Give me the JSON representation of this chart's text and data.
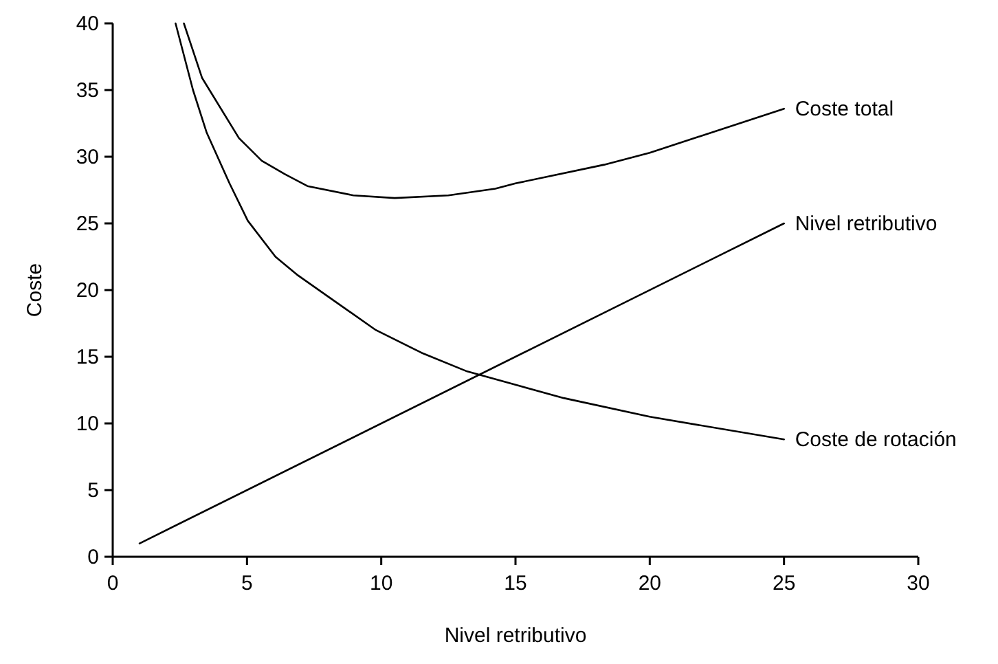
{
  "chart_data": {
    "type": "line",
    "xlabel": "Nivel retributivo",
    "ylabel": "Coste",
    "xlim": [
      0,
      30
    ],
    "ylim": [
      0,
      40
    ],
    "xticks": [
      0,
      5,
      10,
      15,
      20,
      25,
      30
    ],
    "yticks": [
      0,
      5,
      10,
      15,
      20,
      25,
      30,
      35,
      40
    ],
    "grid": false,
    "legend": false,
    "marker": "none",
    "line_style": "solid",
    "series": [
      {
        "name": "Coste total",
        "color": "#000000",
        "x": [
          2.65,
          3.33,
          4.7,
          5.55,
          6.4,
          7.25,
          8.96,
          10.5,
          12.5,
          14.25,
          15,
          18.3,
          20,
          25
        ],
        "values": [
          40,
          35.9,
          31.4,
          29.7,
          28.7,
          27.8,
          27.1,
          26.9,
          27.1,
          27.6,
          28,
          29.4,
          30.3,
          33.6
        ]
      },
      {
        "name": "Nivel retributivo",
        "color": "#000000",
        "x": [
          1,
          25
        ],
        "values": [
          1,
          25
        ]
      },
      {
        "name": "Coste de rotación",
        "color": "#000000",
        "x": [
          2.34,
          2.99,
          3.5,
          4.35,
          5.03,
          6.06,
          6.9,
          8.1,
          9.8,
          11.5,
          13.2,
          15,
          16.8,
          20,
          25
        ],
        "values": [
          40,
          35,
          31.8,
          28,
          25.2,
          22.5,
          21.1,
          19.4,
          17,
          15.3,
          13.9,
          12.9,
          11.9,
          10.5,
          8.8
        ]
      }
    ]
  }
}
